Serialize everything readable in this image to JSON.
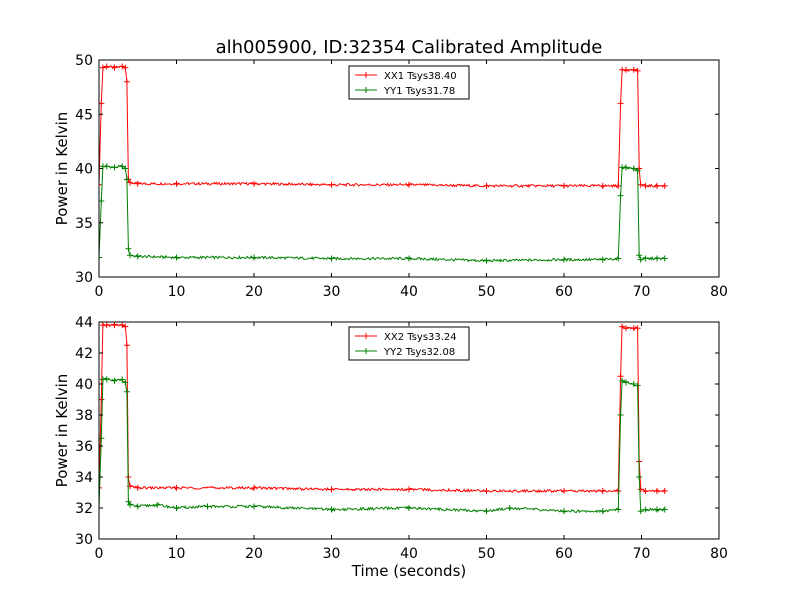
{
  "chart_data": [
    {
      "type": "line",
      "title": "alh005900, ID:32354 Calibrated Amplitude",
      "xlabel": "",
      "ylabel": "Power in Kelvin",
      "xlim": [
        0,
        80
      ],
      "ylim": [
        30,
        50
      ],
      "xticks": [
        "0",
        "10",
        "20",
        "30",
        "40",
        "50",
        "60",
        "70",
        "80"
      ],
      "yticks": [
        "30",
        "35",
        "40",
        "45",
        "50"
      ],
      "legend_position": "top-center",
      "series": [
        {
          "name": "XX1 Tsys38.40",
          "color": "#ff0000",
          "x": [
            0.0,
            0.3,
            0.5,
            1,
            2,
            3,
            3.4,
            3.6,
            3.8,
            4,
            5,
            10,
            20,
            30,
            40,
            50,
            60,
            65,
            67.0,
            67.3,
            67.5,
            68,
            69,
            69.5,
            69.7,
            69.9,
            70.5,
            72,
            73
          ],
          "y": [
            38.5,
            46.0,
            49.3,
            49.4,
            49.3,
            49.4,
            49.3,
            48.0,
            39.0,
            38.7,
            38.6,
            38.6,
            38.6,
            38.5,
            38.5,
            38.4,
            38.4,
            38.4,
            38.4,
            46.0,
            49.1,
            49.1,
            49.1,
            49.0,
            40.0,
            38.5,
            38.4,
            38.4,
            38.4
          ]
        },
        {
          "name": "YY1 Tsys31.78",
          "color": "#008000",
          "x": [
            0.0,
            0.3,
            0.5,
            1,
            2,
            3,
            3.4,
            3.6,
            3.8,
            4,
            5,
            10,
            20,
            30,
            40,
            50,
            60,
            65,
            67.0,
            67.3,
            67.5,
            68,
            69,
            69.5,
            69.7,
            69.9,
            70.5,
            72,
            73
          ],
          "y": [
            31.8,
            37.0,
            40.2,
            40.2,
            40.1,
            40.2,
            40.0,
            39.0,
            32.6,
            32.0,
            31.9,
            31.8,
            31.8,
            31.7,
            31.7,
            31.5,
            31.6,
            31.6,
            31.7,
            37.5,
            40.1,
            40.1,
            40.0,
            39.8,
            32.0,
            31.6,
            31.7,
            31.7,
            31.7
          ]
        }
      ]
    },
    {
      "type": "line",
      "title": "",
      "xlabel": "Time (seconds)",
      "ylabel": "Power in Kelvin",
      "xlim": [
        0,
        80
      ],
      "ylim": [
        30,
        44
      ],
      "xticks": [
        "0",
        "10",
        "20",
        "30",
        "40",
        "50",
        "60",
        "70",
        "80"
      ],
      "yticks": [
        "30",
        "32",
        "34",
        "36",
        "38",
        "40",
        "42",
        "44"
      ],
      "legend_position": "top-center",
      "series": [
        {
          "name": "XX2 Tsys33.24",
          "color": "#ff0000",
          "x": [
            0.0,
            0.3,
            0.5,
            1,
            2,
            3,
            3.4,
            3.6,
            3.8,
            4,
            5,
            10,
            20,
            30,
            40,
            50,
            60,
            65,
            67.0,
            67.3,
            67.5,
            68,
            69,
            69.5,
            69.7,
            69.9,
            70.5,
            72,
            73
          ],
          "y": [
            33.3,
            39.0,
            43.8,
            43.8,
            43.8,
            43.8,
            43.7,
            42.5,
            34.0,
            33.4,
            33.3,
            33.3,
            33.3,
            33.2,
            33.2,
            33.1,
            33.1,
            33.1,
            33.1,
            40.5,
            43.7,
            43.6,
            43.6,
            43.6,
            35.0,
            33.2,
            33.1,
            33.1,
            33.1
          ]
        },
        {
          "name": "YY2 Tsys32.08",
          "color": "#008000",
          "x": [
            0.0,
            0.3,
            0.5,
            1,
            2,
            3,
            3.4,
            3.6,
            3.8,
            4,
            5,
            7.5,
            10,
            14,
            20,
            30,
            40,
            50,
            53,
            60,
            65,
            67.0,
            67.3,
            67.5,
            68,
            69,
            69.5,
            69.7,
            69.9,
            70.5,
            72,
            73
          ],
          "y": [
            32.0,
            36.5,
            40.3,
            40.3,
            40.2,
            40.3,
            40.1,
            39.5,
            32.4,
            32.2,
            32.1,
            32.2,
            32.0,
            32.1,
            32.1,
            31.9,
            32.0,
            31.8,
            32.0,
            31.8,
            31.8,
            31.9,
            38.0,
            40.2,
            40.1,
            40.0,
            39.9,
            34.0,
            31.8,
            31.9,
            31.9,
            31.9
          ]
        }
      ]
    }
  ]
}
